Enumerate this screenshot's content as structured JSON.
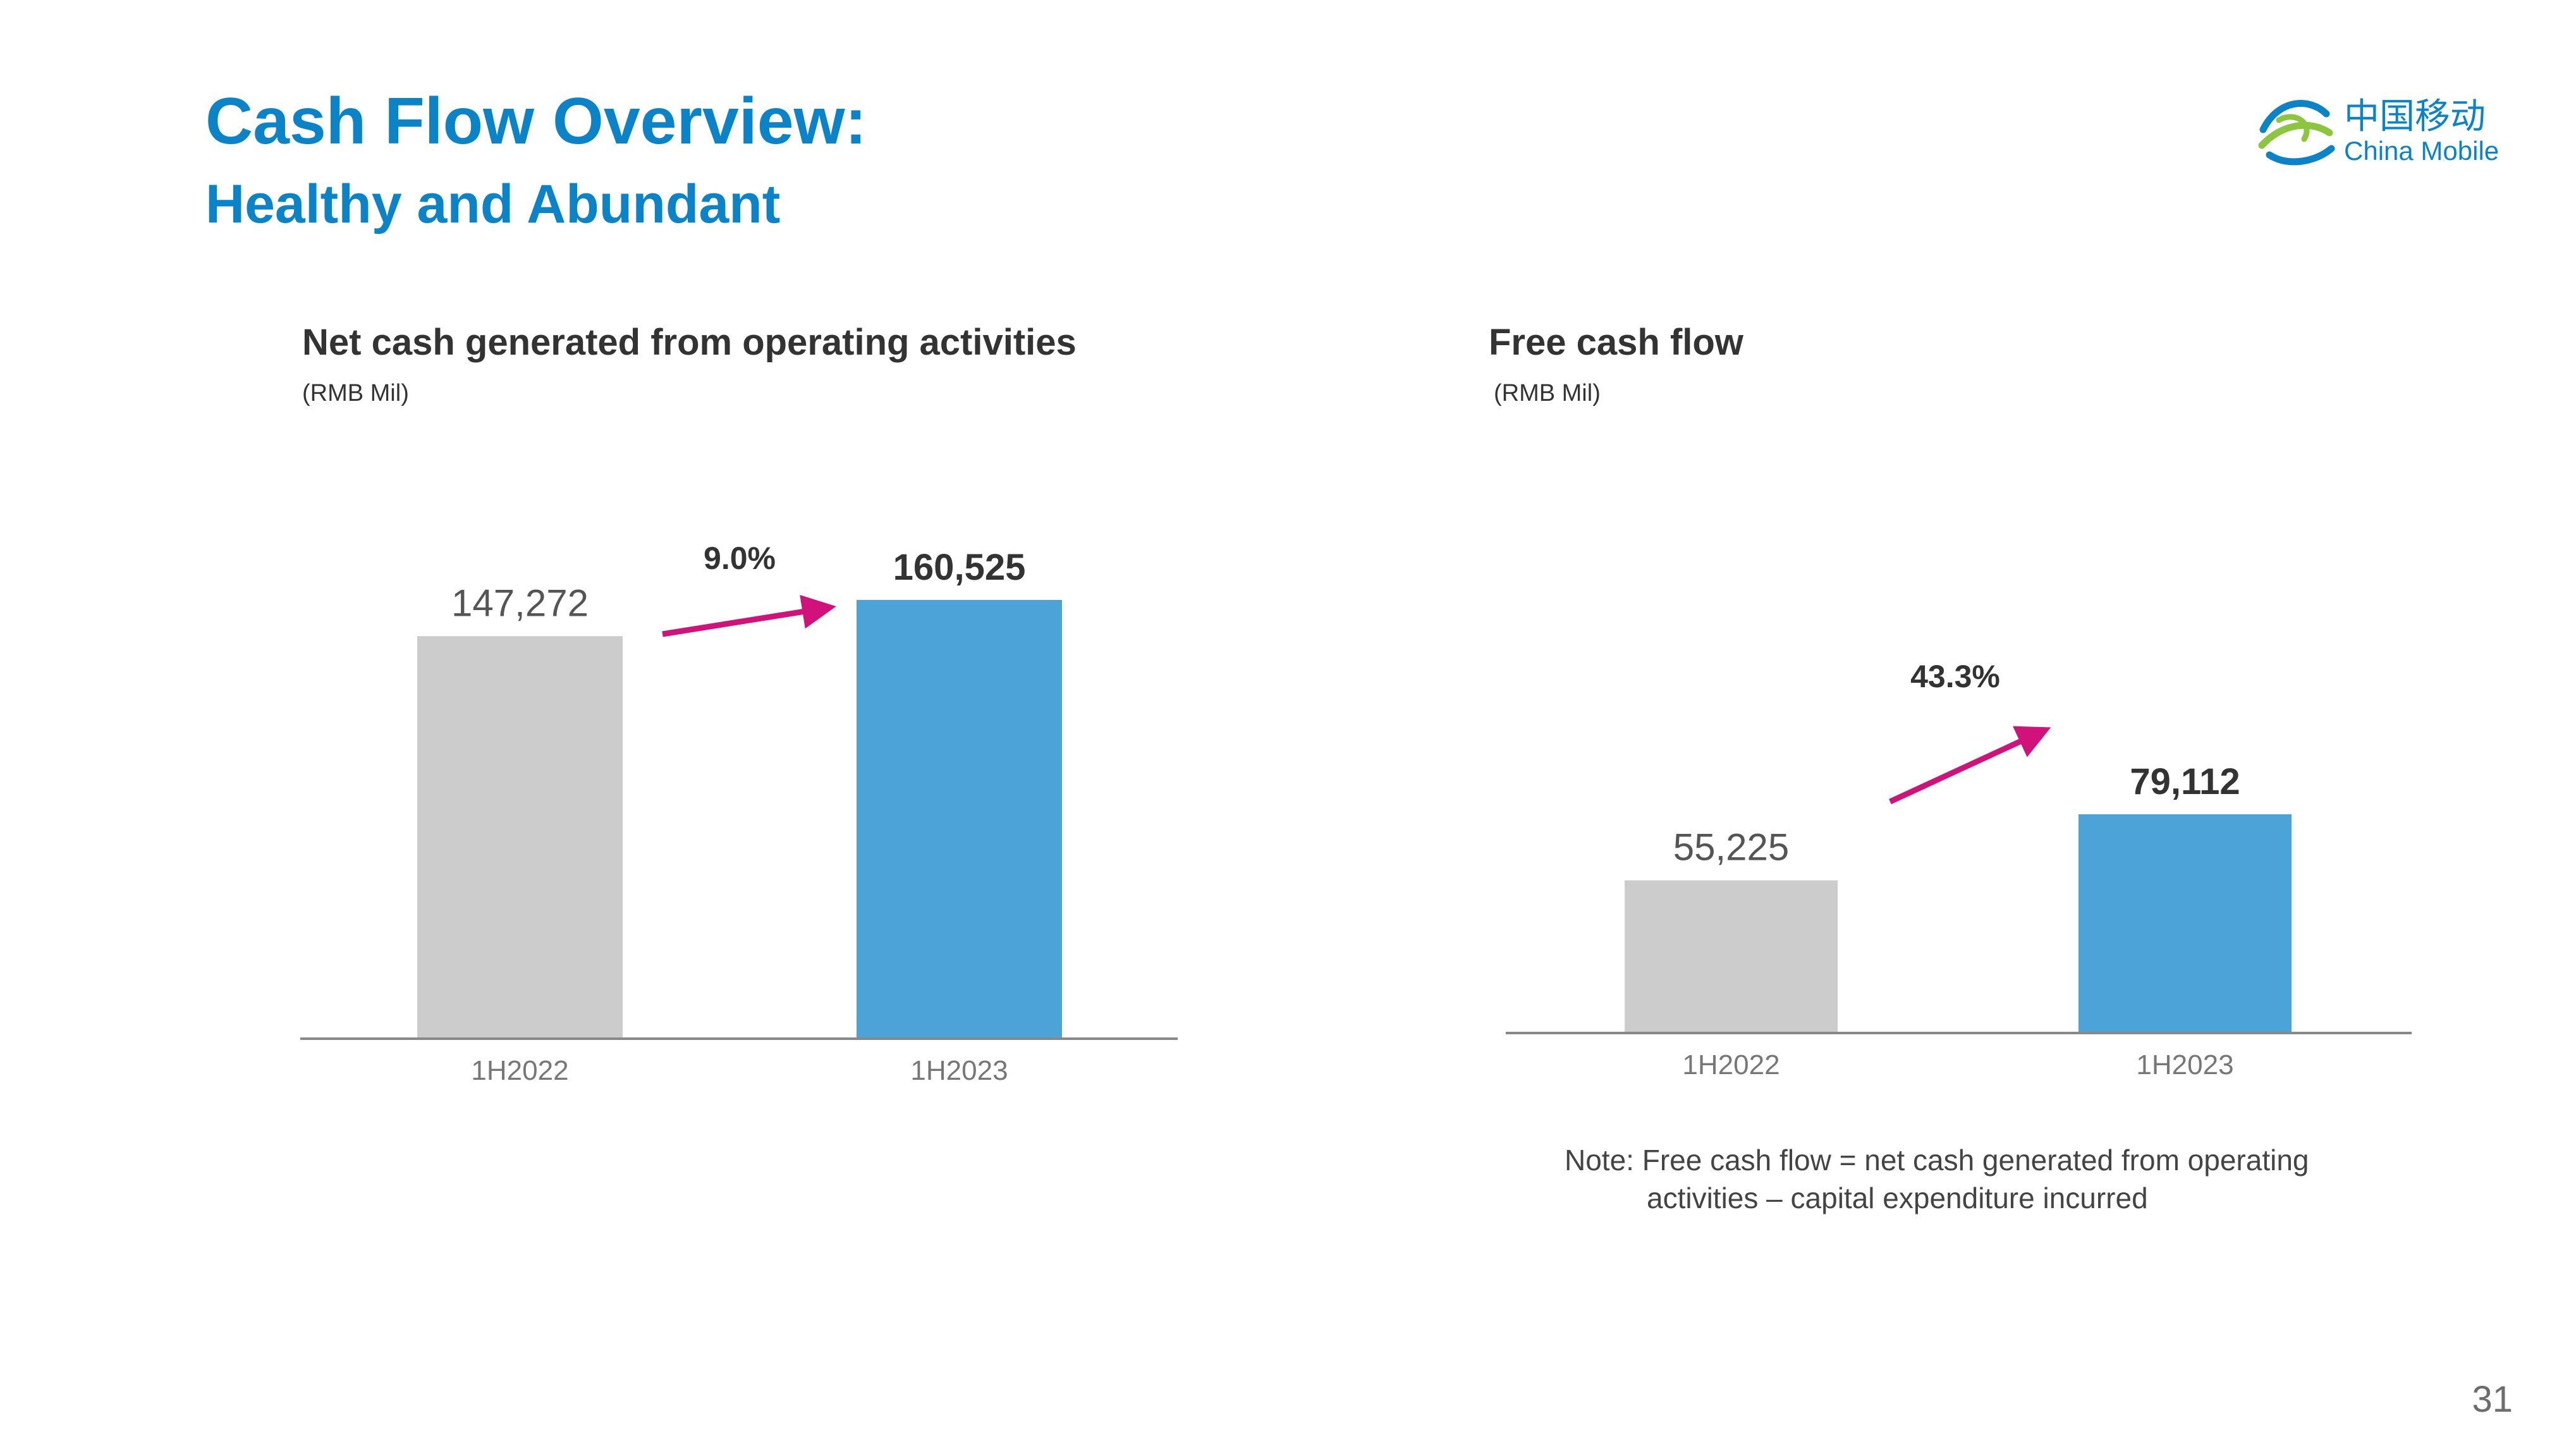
{
  "slide": {
    "title": "Cash Flow Overview:",
    "subtitle": "Healthy and Abundant",
    "page_number": "31",
    "note_line1": "Note: Free cash flow = net cash generated from operating",
    "note_line2": "activities – capital expenditure incurred"
  },
  "logo": {
    "name_cn": "中国移动",
    "name_en": "China Mobile",
    "icon": "china-mobile-logo-icon"
  },
  "colors": {
    "title": "#0b83c9",
    "bar_prior": "#cccccc",
    "bar_current": "#4ca3d8",
    "growth_arrow": "#d1127a",
    "axis": "#888888"
  },
  "chart_data": [
    {
      "type": "bar",
      "title": "Net cash generated from operating activities",
      "unit": "(RMB Mil)",
      "categories": [
        "1H2022",
        "1H2023"
      ],
      "values": [
        147272,
        160525
      ],
      "value_labels": [
        "147,272",
        "160,525"
      ],
      "growth_label": "9.0%",
      "ylim": [
        0,
        160525
      ],
      "grid": false,
      "legend": "none"
    },
    {
      "type": "bar",
      "title": "Free cash flow",
      "unit": "(RMB Mil)",
      "categories": [
        "1H2022",
        "1H2023"
      ],
      "values": [
        55225,
        79112
      ],
      "value_labels": [
        "55,225",
        "79,112"
      ],
      "growth_label": "43.3%",
      "ylim": [
        0,
        160525
      ],
      "grid": false,
      "legend": "none"
    }
  ]
}
